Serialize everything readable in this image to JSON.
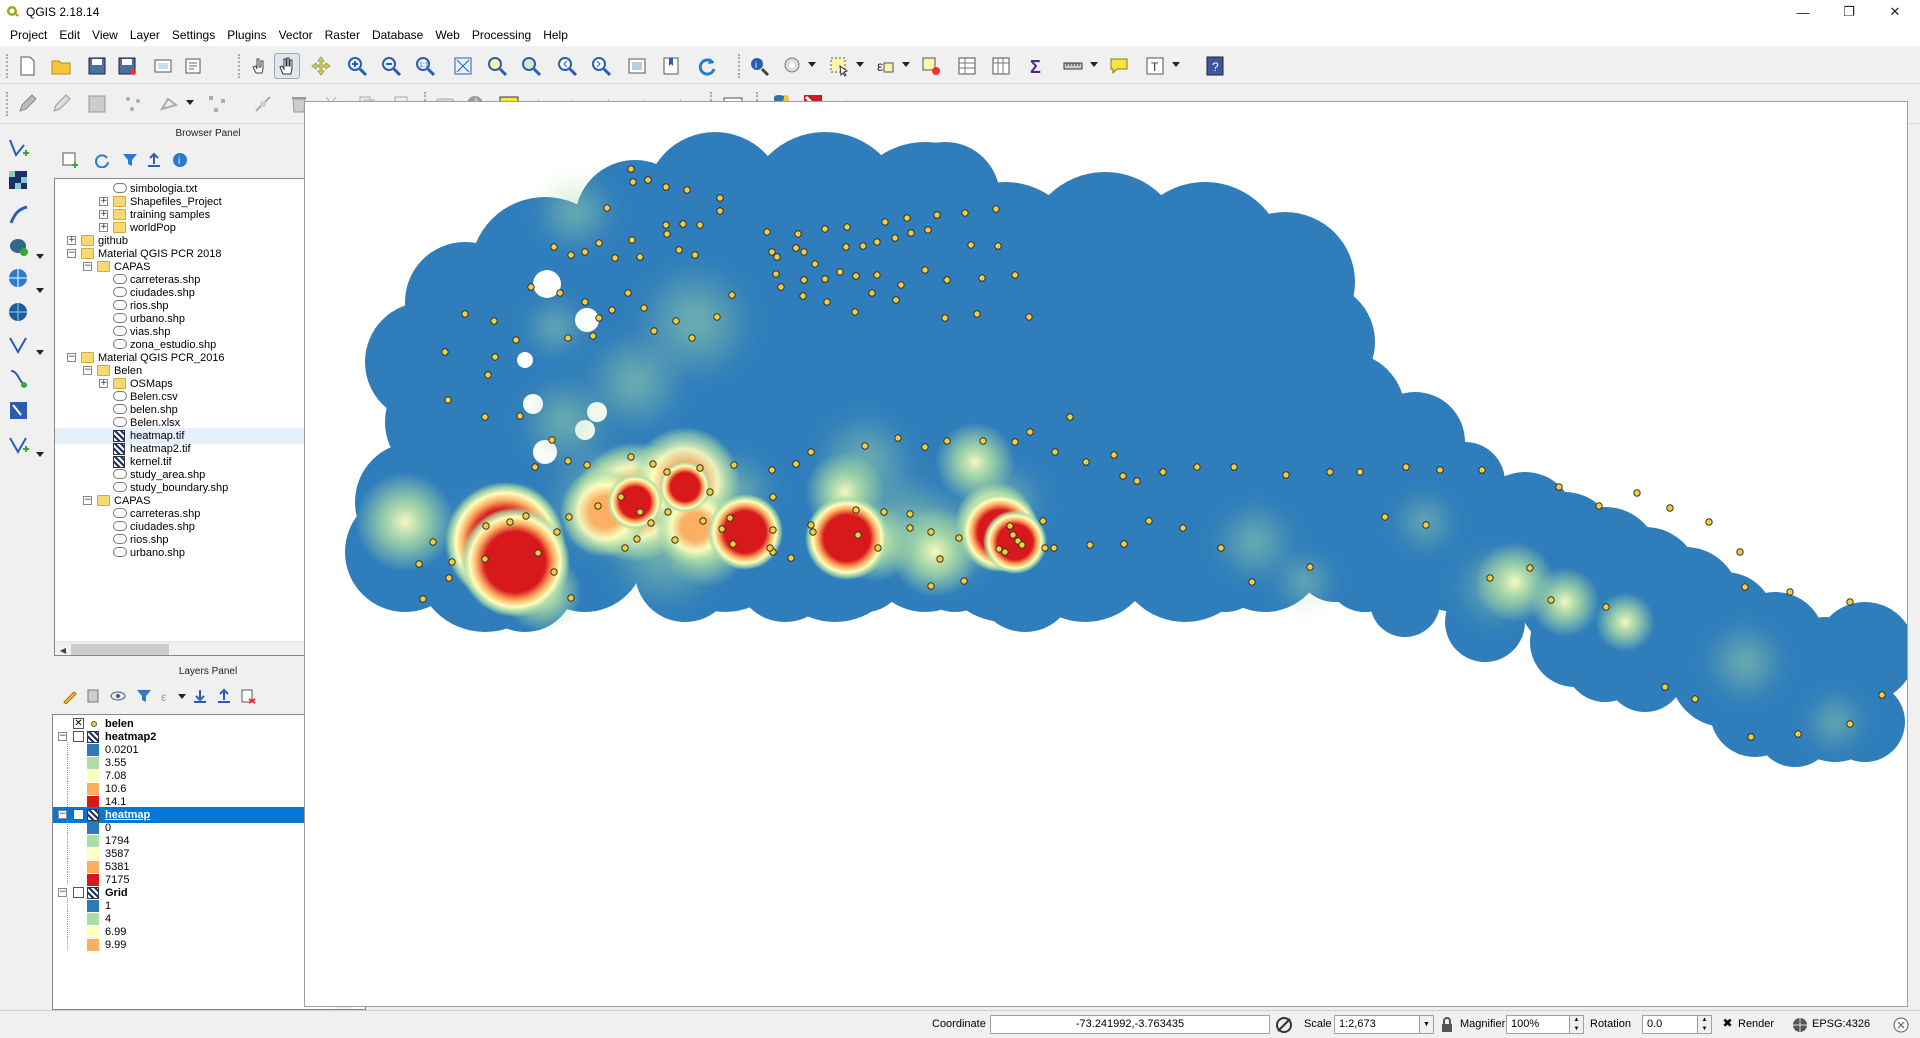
{
  "window": {
    "title": "QGIS 2.18.14"
  },
  "menu": [
    "Project",
    "Edit",
    "View",
    "Layer",
    "Settings",
    "Plugins",
    "Vector",
    "Raster",
    "Database",
    "Web",
    "Processing",
    "Help"
  ],
  "browser_panel": {
    "title": "Browser Panel",
    "items": [
      {
        "label": "simbologia.txt",
        "type": "file"
      },
      {
        "label": "Shapefiles_Project",
        "type": "folder"
      },
      {
        "label": "training samples",
        "type": "folder"
      },
      {
        "label": "worldPop",
        "type": "folder"
      },
      {
        "label": "github",
        "type": "folder"
      },
      {
        "label": "Material QGIS PCR 2018",
        "type": "folder"
      },
      {
        "label": "CAPAS",
        "type": "folder"
      },
      {
        "label": "carreteras.shp",
        "type": "file"
      },
      {
        "label": "ciudades.shp",
        "type": "file"
      },
      {
        "label": "rios.shp",
        "type": "file"
      },
      {
        "label": "urbano.shp",
        "type": "file"
      },
      {
        "label": "vias.shp",
        "type": "file"
      },
      {
        "label": "zona_estudio.shp",
        "type": "file"
      },
      {
        "label": "Material QGIS PCR_2016",
        "type": "folder"
      },
      {
        "label": "Belen",
        "type": "folder"
      },
      {
        "label": "OSMaps",
        "type": "folder"
      },
      {
        "label": "Belen.csv",
        "type": "file"
      },
      {
        "label": "belen.shp",
        "type": "file"
      },
      {
        "label": "Belen.xlsx",
        "type": "file"
      },
      {
        "label": "heatmap.tif",
        "type": "raster"
      },
      {
        "label": "heatmap2.tif",
        "type": "raster"
      },
      {
        "label": "kernel.tif",
        "type": "raster"
      },
      {
        "label": "study_area.shp",
        "type": "file"
      },
      {
        "label": "study_boundary.shp",
        "type": "file"
      },
      {
        "label": "CAPAS",
        "type": "folder"
      },
      {
        "label": "carreteras.shp",
        "type": "file"
      },
      {
        "label": "ciudades.shp",
        "type": "file"
      },
      {
        "label": "rios.shp",
        "type": "file"
      },
      {
        "label": "urbano.shp",
        "type": "file"
      }
    ]
  },
  "layers_panel": {
    "title": "Layers Panel",
    "layers": [
      {
        "name": "belen",
        "checked": true,
        "legend": []
      },
      {
        "name": "heatmap2",
        "checked": false,
        "legend": [
          "0.0201",
          "3.55",
          "7.08",
          "10.6",
          "14.1"
        ]
      },
      {
        "name": "heatmap",
        "checked": true,
        "selected": true,
        "legend": [
          "0",
          "1794",
          "3587",
          "5381",
          "7175"
        ]
      },
      {
        "name": "Grid",
        "checked": false,
        "legend": [
          "1",
          "4",
          "6.99",
          "9.99"
        ]
      }
    ],
    "ramp_colors": [
      "#2c7bb6",
      "#abdda4",
      "#ffffbf",
      "#fdae61",
      "#d7191c"
    ]
  },
  "statusbar": {
    "coordinate_label": "Coordinate",
    "coordinate_value": "-73.241992,-3.763435",
    "scale_label": "Scale",
    "scale_value": "1:2,673",
    "magnifier_label": "Magnifier",
    "magnifier_value": "100%",
    "rotation_label": "Rotation",
    "rotation_value": "0.0",
    "render_label": "Render",
    "render_checked": true,
    "crs": "EPSG:4326"
  },
  "map": {
    "heat_colors": {
      "low": "#2c7bb6",
      "mid": "#abdda4",
      "yellow": "#ffffbf",
      "orange": "#fdae61",
      "high": "#d7191c"
    },
    "point_color": "#f2cf3a"
  }
}
